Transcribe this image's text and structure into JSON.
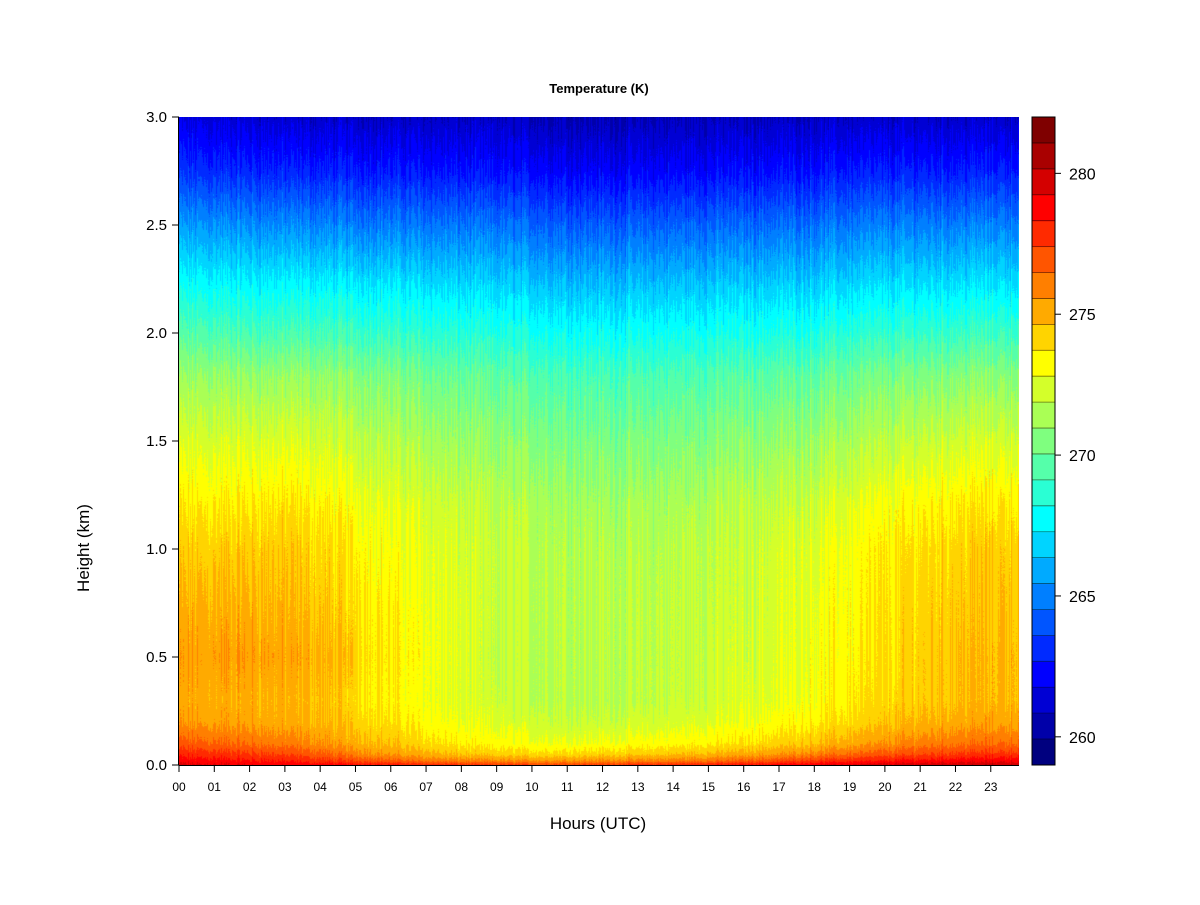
{
  "chart_data": {
    "type": "heatmap",
    "title": "Temperature (K)",
    "xlabel": "Hours (UTC)",
    "ylabel": "Height (km)",
    "x_ticks": [
      "00",
      "01",
      "02",
      "03",
      "04",
      "05",
      "06",
      "07",
      "08",
      "09",
      "10",
      "11",
      "12",
      "13",
      "14",
      "15",
      "16",
      "17",
      "18",
      "19",
      "20",
      "21",
      "22",
      "23"
    ],
    "xlim": [
      0,
      23.8
    ],
    "y_ticks": [
      "0.0",
      "0.5",
      "1.0",
      "1.5",
      "2.0",
      "2.5",
      "3.0"
    ],
    "ylim": [
      0,
      3.0
    ],
    "colorbar": {
      "min": 259,
      "max": 282,
      "ticks": [
        "260",
        "265",
        "270",
        "275",
        "280"
      ],
      "levels": [
        "#00007F",
        "#0000A9",
        "#0000D4",
        "#0000FF",
        "#002AFF",
        "#0055FF",
        "#007FFF",
        "#00AAFF",
        "#00D4FF",
        "#00FFFF",
        "#2AFFD4",
        "#55FFAA",
        "#7FFF7F",
        "#AAFF55",
        "#D4FF2A",
        "#FFFF00",
        "#FFD400",
        "#FFAA00",
        "#FF7F00",
        "#FF5500",
        "#FF2A00",
        "#FF0000",
        "#D40000",
        "#A90000",
        "#7F0000"
      ]
    },
    "temperature_profile": {
      "hours": [
        0,
        1,
        2,
        3,
        4,
        5,
        6,
        7,
        8,
        9,
        10,
        11,
        12,
        13,
        14,
        15,
        16,
        17,
        18,
        19,
        20,
        21,
        22,
        23.8
      ],
      "heights_km": [
        0.0,
        0.02,
        0.05,
        0.1,
        0.2,
        0.3,
        0.5,
        0.7,
        1.0,
        1.2,
        1.5,
        1.8,
        2.0,
        2.2,
        2.5,
        2.75,
        3.0
      ],
      "values": [
        [
          279.5,
          278.8,
          278.0,
          276.8,
          275.4,
          275.0,
          275.2,
          274.9,
          274.2,
          273.6,
          272.4,
          271.0,
          269.5,
          268.0,
          265.5,
          263.2,
          261.5
        ],
        [
          279.3,
          278.6,
          277.8,
          276.6,
          275.3,
          275.0,
          275.3,
          275.0,
          274.3,
          273.6,
          272.4,
          271.0,
          269.4,
          267.9,
          265.4,
          263.1,
          261.4
        ],
        [
          279.2,
          278.4,
          277.6,
          276.4,
          275.2,
          275.0,
          275.4,
          275.0,
          274.4,
          273.7,
          272.5,
          271.0,
          269.3,
          267.8,
          265.3,
          263.0,
          261.3
        ],
        [
          279.0,
          278.2,
          277.3,
          276.1,
          275.0,
          274.8,
          275.2,
          274.8,
          274.4,
          273.8,
          272.5,
          271.0,
          269.3,
          267.8,
          265.2,
          262.9,
          261.2
        ],
        [
          278.8,
          277.8,
          276.8,
          275.6,
          274.8,
          274.6,
          275.0,
          274.5,
          274.1,
          273.5,
          272.3,
          270.9,
          269.2,
          267.7,
          265.1,
          262.8,
          261.1
        ],
        [
          278.6,
          277.2,
          276.0,
          275.0,
          274.3,
          274.0,
          274.3,
          274.0,
          273.6,
          273.1,
          272.0,
          270.7,
          269.1,
          267.6,
          265.0,
          262.8,
          261.1
        ],
        [
          278.4,
          276.8,
          275.4,
          274.6,
          273.8,
          273.5,
          273.6,
          273.5,
          273.1,
          272.7,
          271.7,
          270.5,
          268.9,
          267.5,
          264.9,
          262.7,
          261.0
        ],
        [
          278.0,
          276.2,
          275.0,
          274.0,
          273.3,
          273.0,
          273.1,
          273.0,
          272.7,
          272.4,
          271.4,
          270.2,
          268.7,
          267.3,
          264.8,
          262.6,
          261.0
        ],
        [
          277.8,
          275.9,
          274.5,
          273.5,
          272.8,
          272.5,
          272.5,
          272.5,
          272.3,
          272.0,
          271.0,
          269.9,
          268.5,
          267.1,
          264.7,
          262.5,
          260.9
        ],
        [
          277.6,
          275.7,
          274.2,
          273.2,
          272.5,
          272.1,
          271.9,
          272.0,
          272.0,
          271.7,
          270.8,
          269.7,
          268.3,
          266.9,
          264.6,
          262.4,
          260.9
        ],
        [
          277.5,
          275.6,
          274.1,
          273.0,
          272.3,
          271.9,
          271.8,
          271.9,
          271.8,
          271.6,
          270.7,
          269.6,
          268.2,
          266.8,
          264.5,
          262.4,
          260.8
        ],
        [
          277.5,
          275.6,
          274.1,
          272.9,
          272.1,
          271.8,
          271.8,
          271.8,
          271.7,
          271.4,
          270.5,
          269.4,
          268.0,
          266.6,
          264.3,
          262.2,
          260.7
        ],
        [
          277.6,
          275.7,
          274.2,
          273.0,
          272.1,
          271.7,
          271.7,
          271.8,
          271.6,
          271.3,
          270.4,
          269.3,
          267.9,
          266.5,
          264.2,
          262.1,
          260.6
        ],
        [
          277.8,
          275.8,
          274.3,
          273.1,
          272.2,
          271.8,
          271.8,
          271.8,
          271.6,
          271.3,
          270.4,
          269.3,
          267.9,
          266.5,
          264.2,
          262.1,
          260.6
        ],
        [
          278.0,
          276.0,
          274.5,
          273.3,
          272.4,
          272.0,
          271.9,
          271.9,
          271.7,
          271.4,
          270.5,
          269.4,
          268.0,
          266.6,
          264.3,
          262.2,
          260.7
        ],
        [
          278.2,
          276.3,
          274.8,
          273.5,
          272.6,
          272.2,
          272.1,
          272.0,
          271.9,
          271.6,
          270.6,
          269.5,
          268.1,
          266.7,
          264.4,
          262.3,
          260.8
        ],
        [
          278.5,
          276.7,
          275.1,
          273.8,
          272.9,
          272.5,
          272.3,
          272.2,
          272.1,
          271.8,
          270.8,
          269.6,
          268.2,
          266.8,
          264.5,
          262.4,
          260.8
        ],
        [
          278.8,
          277.1,
          275.5,
          274.2,
          273.2,
          272.8,
          272.6,
          272.5,
          272.4,
          272.0,
          271.0,
          269.8,
          268.3,
          266.9,
          264.6,
          262.5,
          260.9
        ],
        [
          279.1,
          277.6,
          276.0,
          274.6,
          273.6,
          273.2,
          273.0,
          272.9,
          272.7,
          272.3,
          271.2,
          269.9,
          268.4,
          267.0,
          264.7,
          262.6,
          261.0
        ],
        [
          279.4,
          278.0,
          276.5,
          275.1,
          274.0,
          273.6,
          273.4,
          273.3,
          273.1,
          272.6,
          271.4,
          270.1,
          268.6,
          267.1,
          264.8,
          262.7,
          261.0
        ],
        [
          279.6,
          278.3,
          276.9,
          275.5,
          274.4,
          274.0,
          273.8,
          273.7,
          273.5,
          273.0,
          271.7,
          270.3,
          268.7,
          267.2,
          264.9,
          262.7,
          261.0
        ],
        [
          279.8,
          278.6,
          277.3,
          276.0,
          274.8,
          274.4,
          274.3,
          274.2,
          273.9,
          273.4,
          272.0,
          270.5,
          268.9,
          267.3,
          265.0,
          262.8,
          261.1
        ],
        [
          279.9,
          278.8,
          277.6,
          276.3,
          275.1,
          274.7,
          274.7,
          274.5,
          274.2,
          273.7,
          272.3,
          270.7,
          269.0,
          267.4,
          265.0,
          262.8,
          261.1
        ],
        [
          280.0,
          279.0,
          277.8,
          276.5,
          275.3,
          274.9,
          274.9,
          274.7,
          274.4,
          273.8,
          272.4,
          270.8,
          269.1,
          267.5,
          265.1,
          262.9,
          261.1
        ]
      ]
    }
  }
}
